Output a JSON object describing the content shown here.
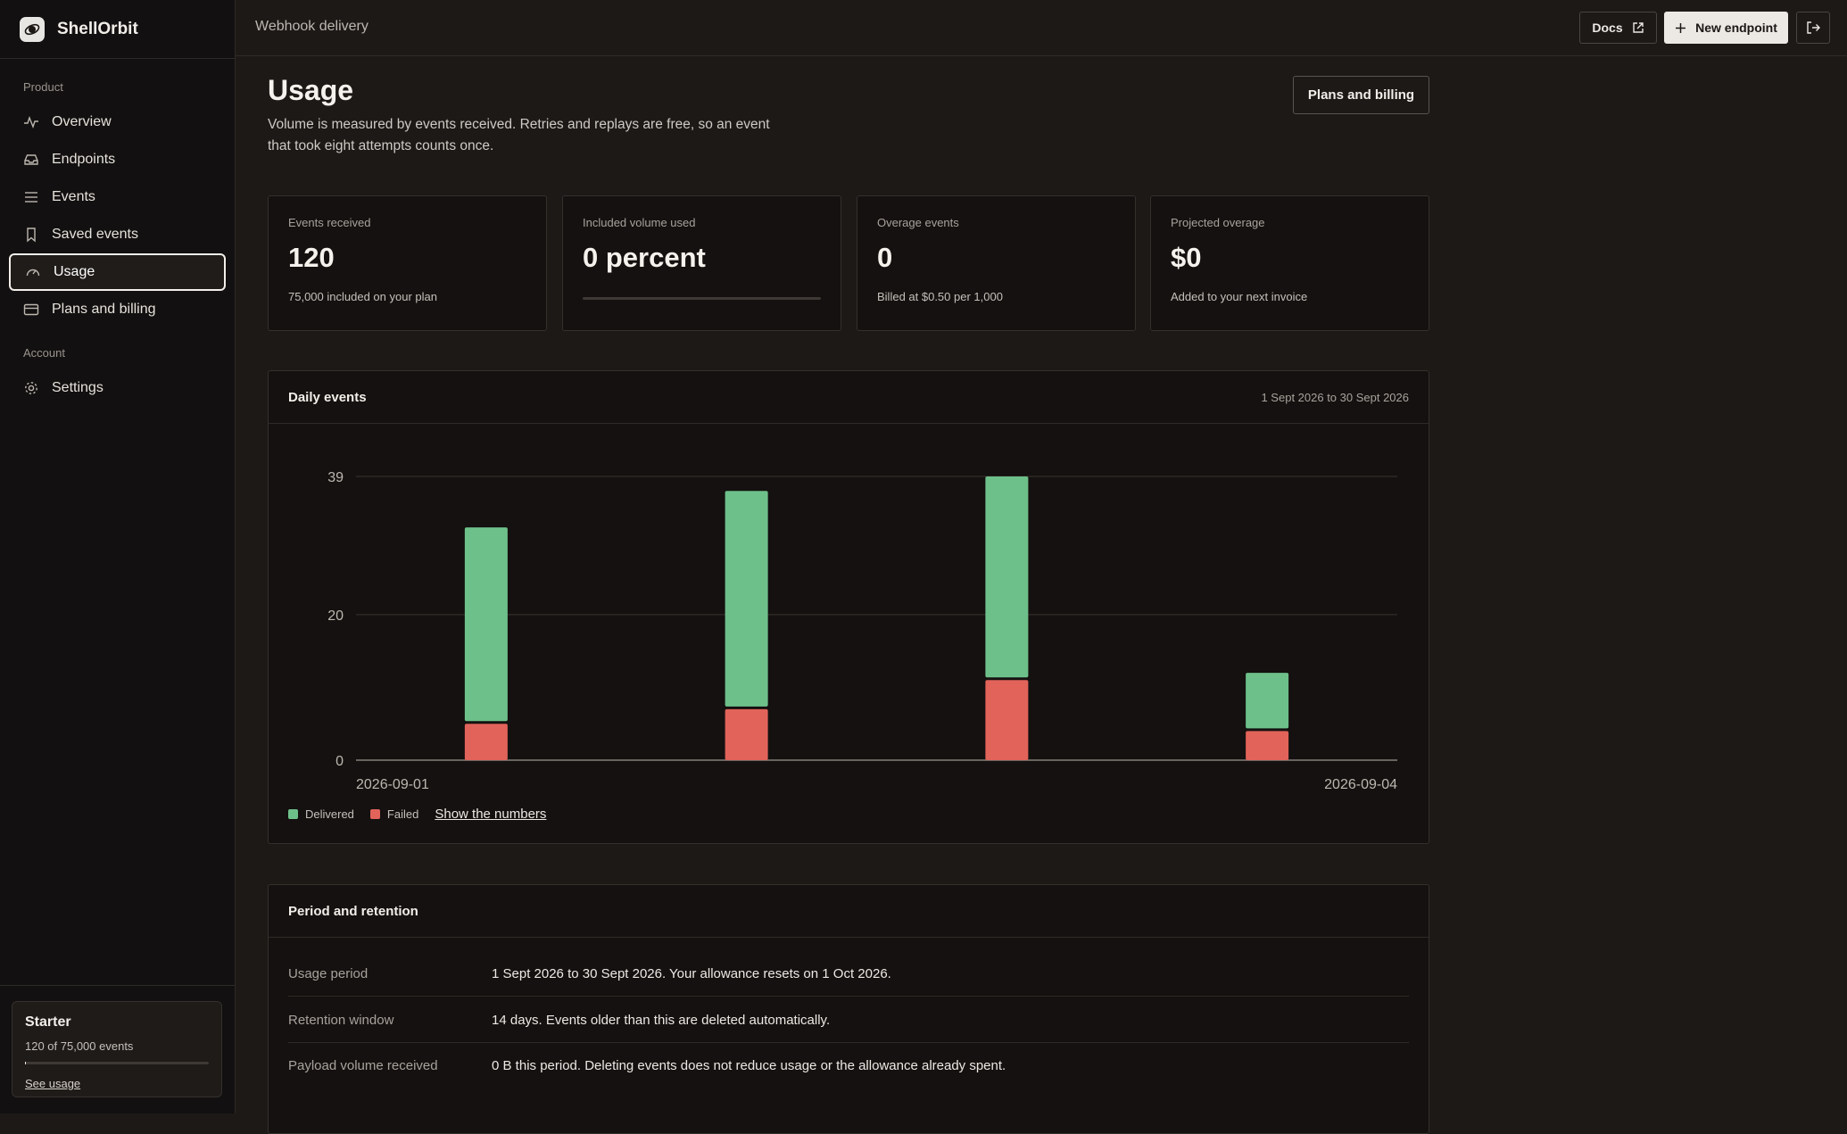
{
  "brand": {
    "name": "ShellOrbit"
  },
  "sidebar": {
    "sections": [
      {
        "label": "Product",
        "items": [
          {
            "label": "Overview",
            "icon": "activity-icon"
          },
          {
            "label": "Endpoints",
            "icon": "inbox-icon"
          },
          {
            "label": "Events",
            "icon": "list-icon"
          },
          {
            "label": "Saved events",
            "icon": "bookmark-icon"
          },
          {
            "label": "Usage",
            "icon": "gauge-icon",
            "active": true
          },
          {
            "label": "Plans and billing",
            "icon": "credit-card-icon"
          }
        ]
      },
      {
        "label": "Account",
        "items": [
          {
            "label": "Settings",
            "icon": "gear-icon"
          }
        ]
      }
    ],
    "plan": {
      "name": "Starter",
      "usage": "120 of 75,000 events",
      "usage_fraction": 0.0016,
      "link": "See usage"
    }
  },
  "topbar": {
    "breadcrumb": "Webhook delivery",
    "docs_label": "Docs",
    "new_endpoint_label": "New endpoint"
  },
  "page": {
    "title": "Usage",
    "description": "Volume is measured by events received. Retries and replays are free, so an event that took eight attempts counts once.",
    "plans_button": "Plans and billing"
  },
  "stats": [
    {
      "label": "Events received",
      "value": "120",
      "sub": "75,000 included on your plan"
    },
    {
      "label": "Included volume used",
      "value": "0 percent",
      "progress": 0
    },
    {
      "label": "Overage events",
      "value": "0",
      "sub": "Billed at $0.50 per 1,000"
    },
    {
      "label": "Projected overage",
      "value": "$0",
      "sub": "Added to your next invoice"
    }
  ],
  "daily": {
    "title": "Daily events",
    "range": "1 Sept 2026 to 30 Sept 2026",
    "show_numbers": "Show the numbers"
  },
  "colors": {
    "delivered": "#6ec08a",
    "failed": "#e2635a"
  },
  "chart_data": {
    "type": "bar",
    "stacked": true,
    "categories": [
      "2026-09-01",
      "2026-09-02",
      "2026-09-03",
      "2026-09-04"
    ],
    "x_tick_labels": [
      "2026-09-01",
      "2026-09-04"
    ],
    "y_ticks": [
      "0",
      "20",
      "39"
    ],
    "ylim": [
      0,
      39
    ],
    "series": [
      {
        "name": "Delivered",
        "values": [
          27,
          30,
          28,
          8
        ]
      },
      {
        "name": "Failed",
        "values": [
          5,
          7,
          11,
          4
        ]
      }
    ],
    "grid": true,
    "legend": "bottom-left"
  },
  "period": {
    "title": "Period and retention",
    "rows": [
      {
        "key": "Usage period",
        "value": "1 Sept 2026 to 30 Sept 2026. Your allowance resets on 1 Oct 2026."
      },
      {
        "key": "Retention window",
        "value": "14 days. Events older than this are deleted automatically."
      },
      {
        "key": "Payload volume received",
        "value": "0 B this period. Deleting events does not reduce usage or the allowance already spent."
      }
    ]
  }
}
